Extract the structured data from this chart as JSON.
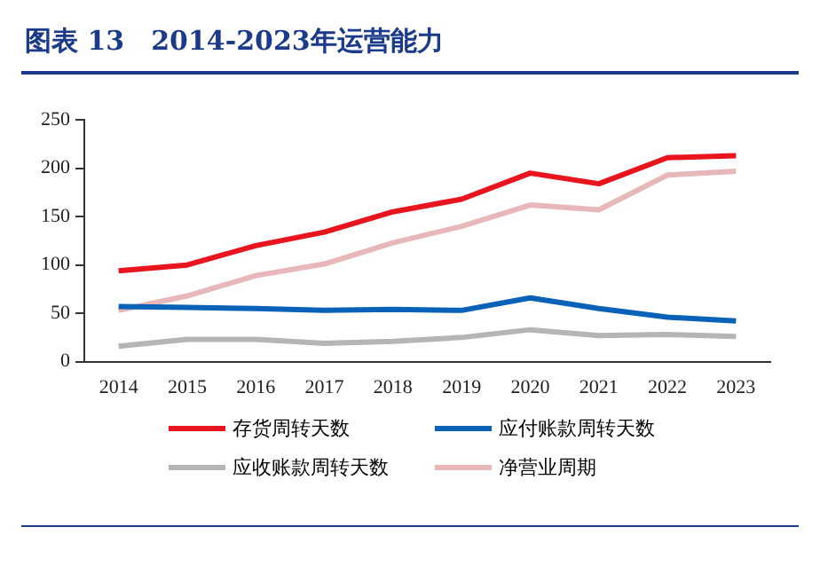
{
  "chart_data": {
    "type": "line",
    "title": "图表 13　2014-2023年运营能力",
    "categories": [
      "2014",
      "2015",
      "2016",
      "2017",
      "2018",
      "2019",
      "2020",
      "2021",
      "2022",
      "2023"
    ],
    "series": [
      {
        "name": "存货周转天数",
        "color": "#e8151f",
        "values": [
          94,
          100,
          120,
          134,
          155,
          168,
          195,
          184,
          211,
          213
        ]
      },
      {
        "name": "应付账款周转天数",
        "color": "#0a62b8",
        "values": [
          57,
          56,
          55,
          53,
          54,
          53,
          66,
          55,
          46,
          42
        ]
      },
      {
        "name": "应收账款周转天数",
        "color": "#b5b5b5",
        "values": [
          16,
          23,
          23,
          19,
          21,
          25,
          33,
          27,
          28,
          26
        ]
      },
      {
        "name": "净营业周期",
        "color": "#e8b7b9",
        "values": [
          53,
          68,
          89,
          101,
          123,
          140,
          162,
          157,
          193,
          197
        ]
      }
    ],
    "ylim": [
      0,
      250
    ],
    "yticks": [
      0,
      50,
      100,
      150,
      200,
      250
    ],
    "grid": false,
    "legend": "bottom",
    "marker": "none",
    "line_style": "solid"
  }
}
